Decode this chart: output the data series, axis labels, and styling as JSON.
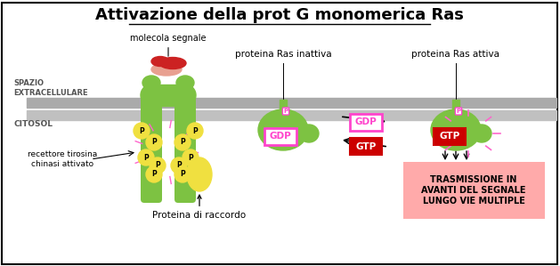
{
  "title": "Attivazione della prot G monomerica Ras",
  "bg_color": "#ffffff",
  "border_color": "#000000",
  "receptor_color": "#7dc242",
  "signal_molecule_color": "#cc2222",
  "signal_molecule_light": "#e8a090",
  "p_circle_color": "#f0e040",
  "gdp_box_color": "#ff44cc",
  "gtp_box_color": "#cc0000",
  "trasmissione_bg": "#ffaaaa",
  "labels": {
    "molecola_segnale": "molecola segnale",
    "spazio_extracellulare": "SPAZIO\nEXTRACELLULARE",
    "citosol": "CITOSOL",
    "proteina_ras_inattiva": "proteina Ras inattiva",
    "proteina_ras_attiva": "proteina Ras attiva",
    "recettore": "recettore tirosina\nchinasi attivato",
    "proteina_raccordo": "Proteina di raccordo",
    "trasmissione": "TRASMISSIONE IN\nAVANTI DEL SEGNALE\nLUNGO VIE MULTIPLE",
    "gdp": "GDP",
    "gtp": "GTP"
  }
}
